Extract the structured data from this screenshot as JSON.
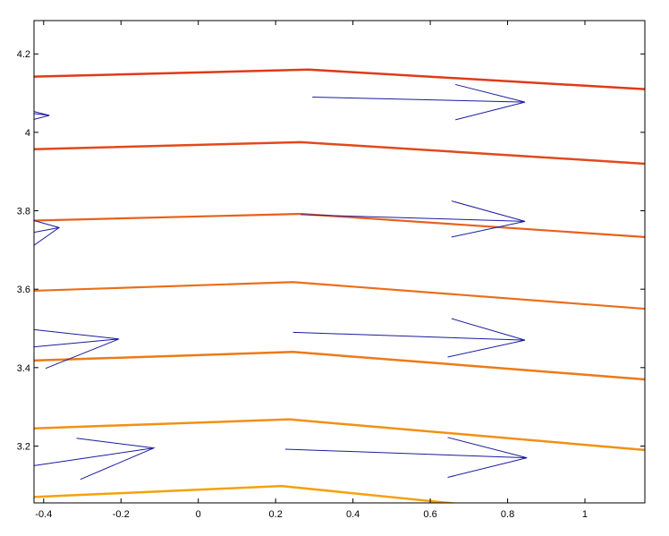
{
  "chart_data": {
    "type": "line",
    "title": "",
    "xlabel": "",
    "ylabel": "",
    "xlim": [
      -0.425,
      1.155
    ],
    "ylim": [
      3.055,
      4.285
    ],
    "grid": false,
    "x_ticks": [
      -0.4,
      -0.2,
      0,
      0.2,
      0.4,
      0.6,
      0.8,
      1
    ],
    "x_tick_labels": [
      "-0.4",
      "-0.2",
      "0",
      "0.2",
      "0.4",
      "0.6",
      "0.8",
      "1"
    ],
    "y_ticks": [
      3.2,
      3.4,
      3.6,
      3.8,
      4.0,
      4.2
    ],
    "y_tick_labels": [
      "3.2",
      "3.4",
      "3.6",
      "3.8",
      "4",
      "4.2"
    ],
    "series": [
      {
        "color": "#f5a10a",
        "width": 2.5,
        "x": [
          -0.425,
          0.215,
          0.95
        ],
        "y": [
          3.07,
          3.098,
          3.025
        ]
      },
      {
        "color": "#f29012",
        "width": 2.5,
        "x": [
          -0.425,
          0.235,
          1.155
        ],
        "y": [
          3.245,
          3.268,
          3.19
        ]
      },
      {
        "color": "#ec7a17",
        "width": 2.5,
        "x": [
          -0.425,
          0.245,
          1.155
        ],
        "y": [
          3.418,
          3.44,
          3.37
        ]
      },
      {
        "color": "#eb6e1a",
        "width": 2.2,
        "x": [
          -0.425,
          0.245,
          1.155
        ],
        "y": [
          3.596,
          3.618,
          3.55
        ]
      },
      {
        "color": "#e8601c",
        "width": 2.2,
        "x": [
          -0.425,
          0.265,
          1.155
        ],
        "y": [
          3.775,
          3.792,
          3.733
        ]
      },
      {
        "color": "#e2491b",
        "width": 2.5,
        "x": [
          -0.425,
          0.265,
          1.155
        ],
        "y": [
          3.957,
          3.975,
          3.92
        ]
      },
      {
        "color": "#e03a18",
        "width": 2.5,
        "x": [
          -0.425,
          0.285,
          1.155
        ],
        "y": [
          4.142,
          4.16,
          4.11
        ]
      }
    ],
    "arrows": [
      {
        "x0": 0.295,
        "y0": 4.09,
        "x1": 0.845,
        "y1": 4.077,
        "h1x": 0.665,
        "h1y": 4.122,
        "h2x": 0.665,
        "h2y": 4.032
      },
      {
        "x0": -0.425,
        "y0": 4.048,
        "x1": -0.385,
        "y1": 4.043,
        "h1x": -0.425,
        "h1y": 4.053,
        "h2x": -0.425,
        "h2y": 4.033
      },
      {
        "x0": 0.265,
        "y0": 3.79,
        "x1": 0.845,
        "y1": 3.773,
        "h1x": 0.655,
        "h1y": 3.825,
        "h2x": 0.655,
        "h2y": 3.733
      },
      {
        "x0": -0.425,
        "y0": 3.745,
        "x1": -0.36,
        "y1": 3.757,
        "h1x": -0.425,
        "h1y": 3.775,
        "h2x": -0.425,
        "h2y": 3.712
      },
      {
        "x0": 0.245,
        "y0": 3.49,
        "x1": 0.845,
        "y1": 3.47,
        "h1x": 0.655,
        "h1y": 3.525,
        "h2x": 0.645,
        "h2y": 3.427
      },
      {
        "x0": -0.425,
        "y0": 3.453,
        "x1": -0.205,
        "y1": 3.473,
        "h1x": -0.425,
        "h1y": 3.497,
        "h2x": -0.395,
        "h2y": 3.398
      },
      {
        "x0": 0.225,
        "y0": 3.192,
        "x1": 0.85,
        "y1": 3.17,
        "h1x": 0.645,
        "h1y": 3.222,
        "h2x": 0.645,
        "h2y": 3.12
      },
      {
        "x0": -0.425,
        "y0": 3.15,
        "x1": -0.115,
        "y1": 3.195,
        "h1x": -0.315,
        "h1y": 3.22,
        "h2x": -0.305,
        "h2y": 3.115
      }
    ],
    "arrow_color": "#1a1aa0"
  }
}
